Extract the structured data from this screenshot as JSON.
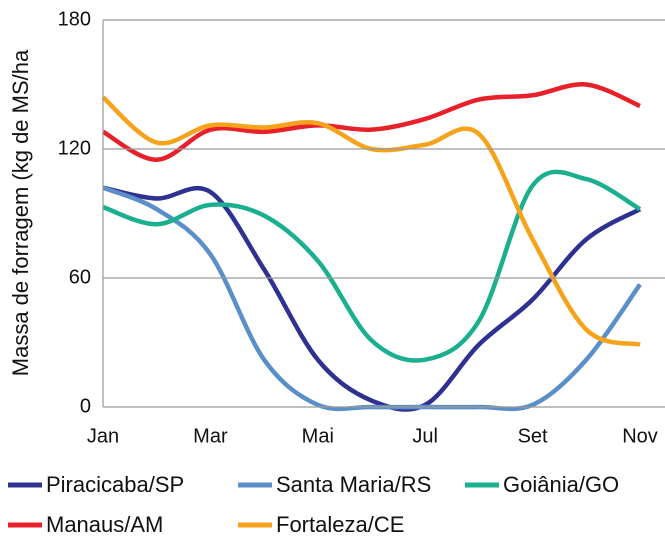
{
  "chart_data": {
    "type": "line",
    "y_label": "Massa de forragem (kg de MS/ha",
    "categories": [
      "Jan",
      null,
      "Mar",
      null,
      "Mai",
      null,
      "Jul",
      null,
      "Set",
      null,
      "Nov"
    ],
    "ylim": [
      0,
      180
    ],
    "yticks": [
      0,
      60,
      120,
      180
    ],
    "grid": true,
    "series": [
      {
        "name": "Piracicaba/SP",
        "color": "#2e3192",
        "values": [
          102,
          97,
          100,
          64,
          22,
          3,
          1,
          29,
          50,
          78,
          92
        ]
      },
      {
        "name": "Santa Maria/RS",
        "color": "#5b8fc9",
        "values": [
          102,
          92,
          71,
          22,
          1,
          0,
          0,
          0,
          1,
          22,
          57
        ]
      },
      {
        "name": "Goiânia/GO",
        "color": "#1aaf8f",
        "values": [
          93,
          85,
          94,
          89,
          68,
          31,
          22,
          40,
          103,
          106,
          92
        ]
      },
      {
        "name": "Manaus/AM",
        "color": "#e8202a",
        "values": [
          128,
          115,
          129,
          128,
          131,
          129,
          134,
          143,
          145,
          150,
          140
        ]
      },
      {
        "name": "Fortaleza/CE",
        "color": "#f7a21b",
        "values": [
          144,
          123,
          131,
          130,
          132,
          120,
          122,
          127,
          78,
          36,
          29
        ]
      }
    ]
  }
}
